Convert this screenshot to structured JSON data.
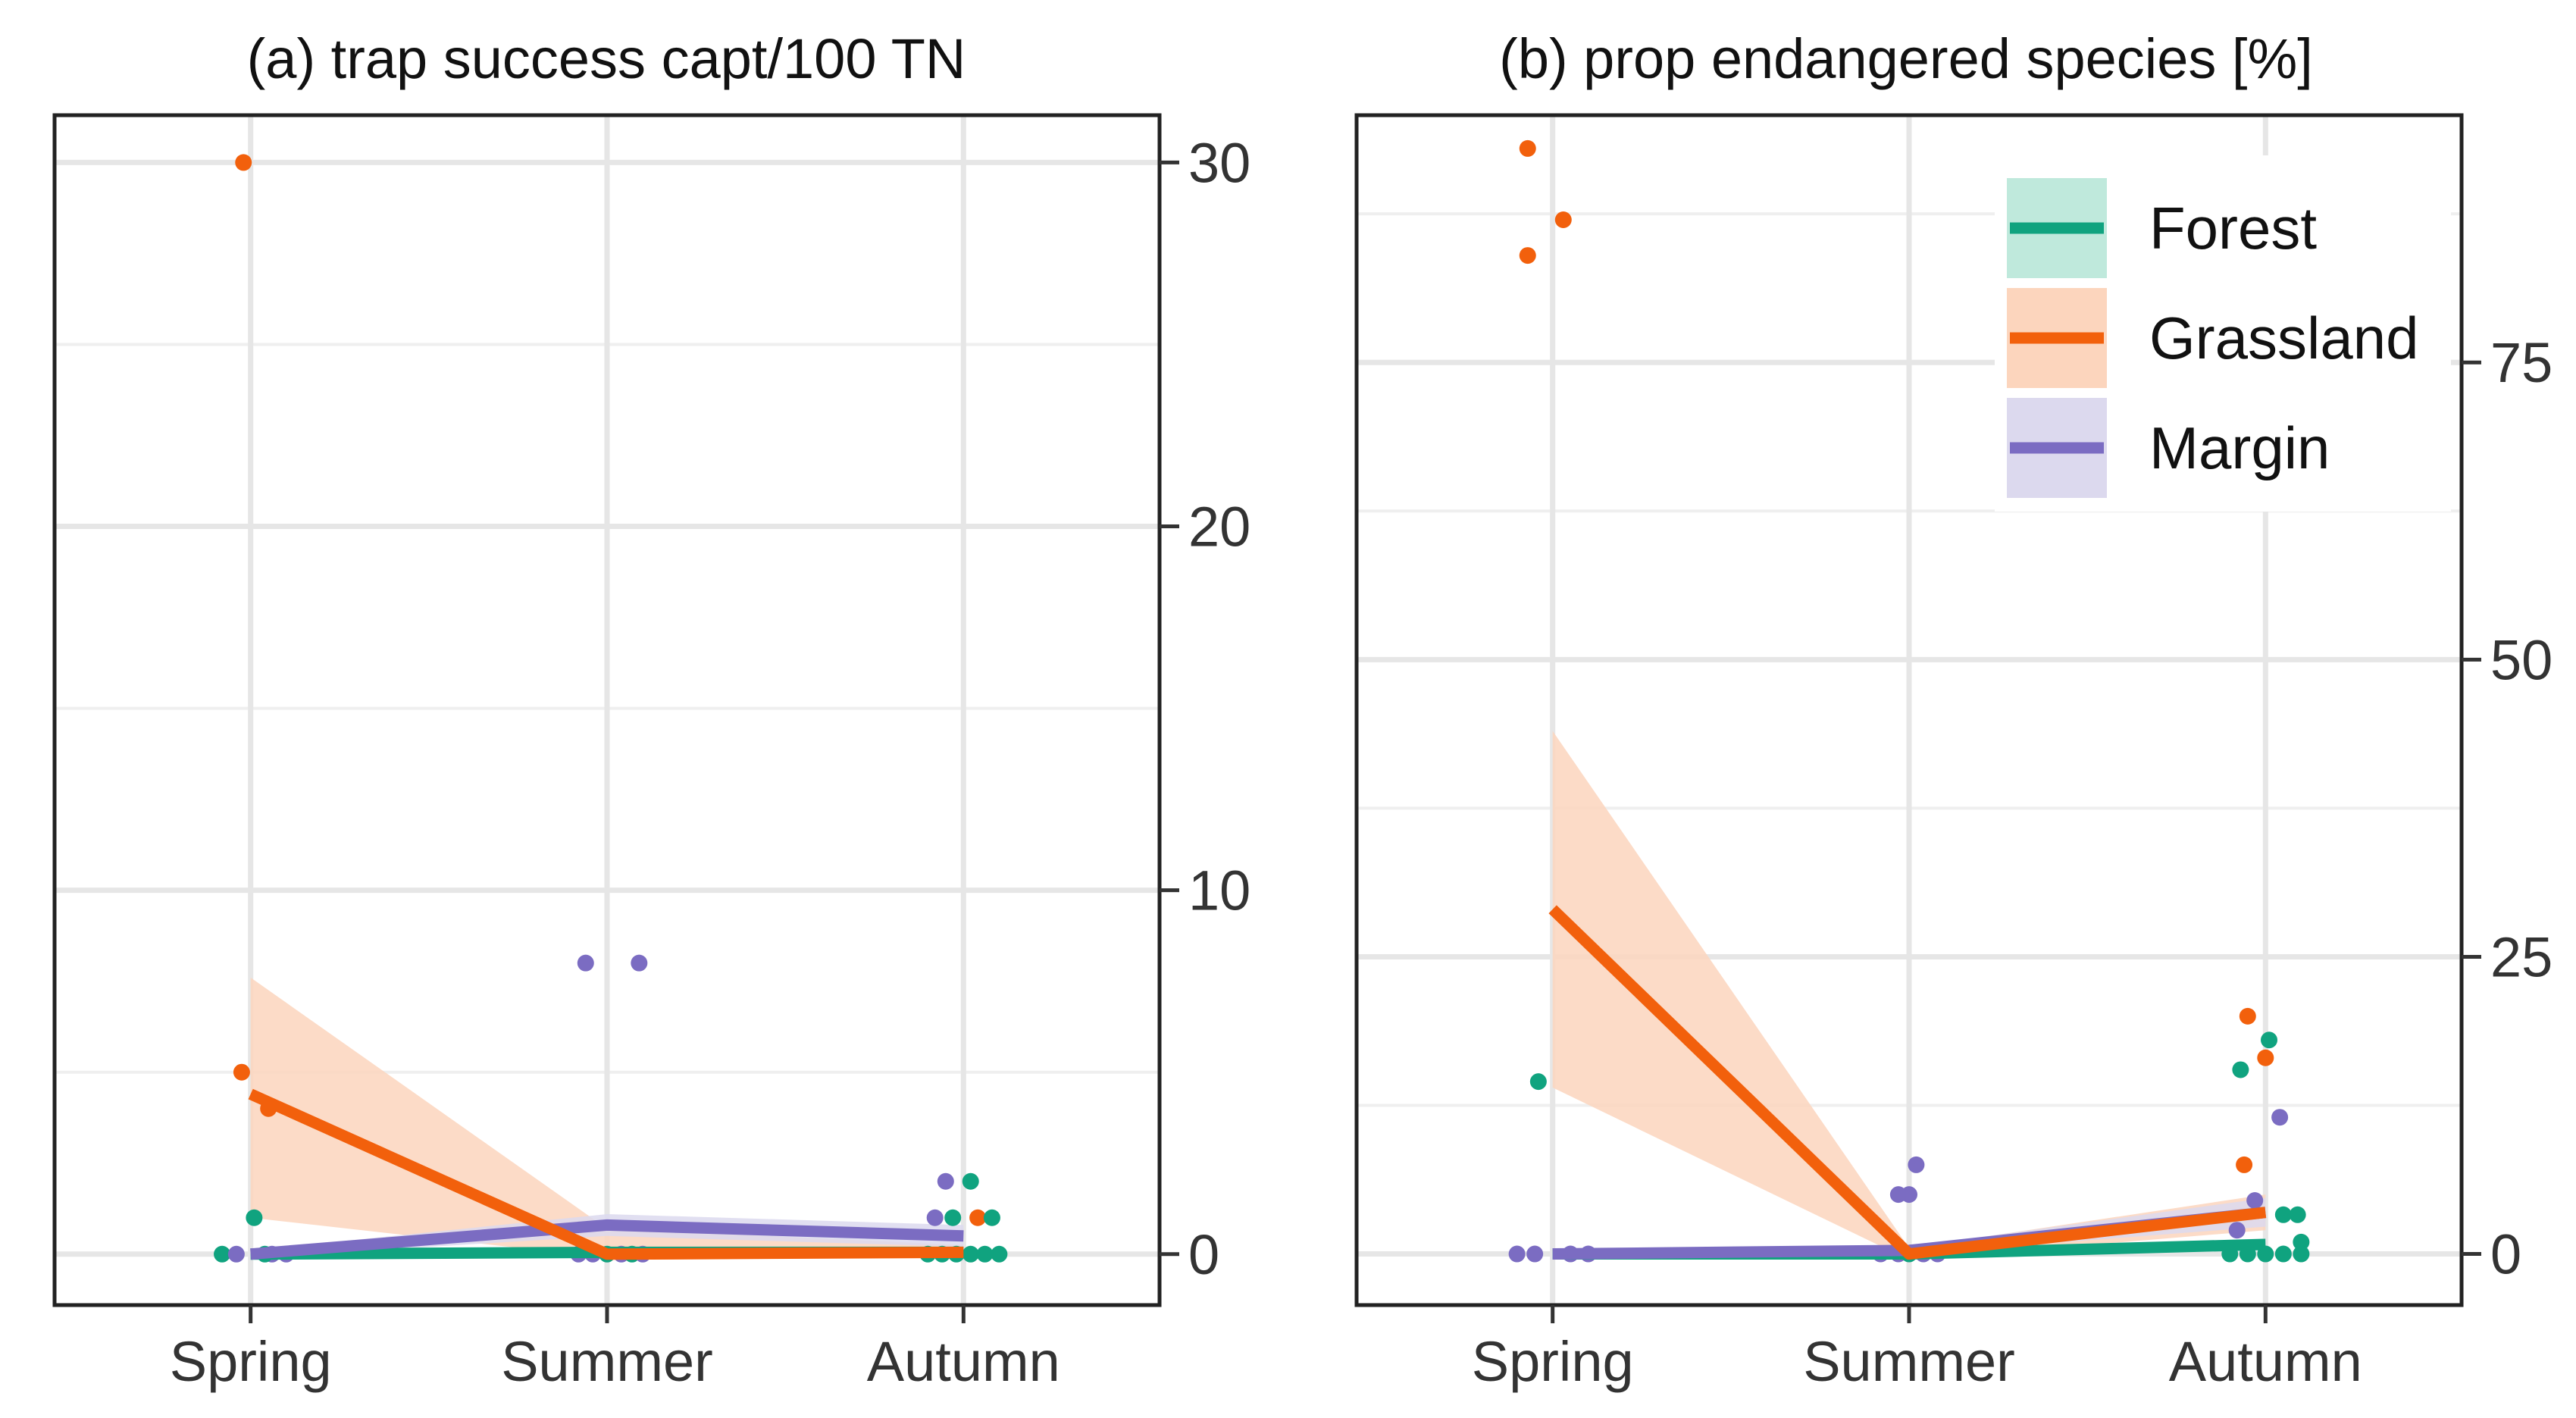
{
  "colors": {
    "Forest": "#10a37f",
    "Grassland": "#f2600c",
    "Margin": "#7b6cc2",
    "Forest_ribbon": "#bfe9dc",
    "Grassland_ribbon": "#fcd5bd",
    "Margin_ribbon": "#dcd9ee"
  },
  "chart_data": [
    {
      "type": "line",
      "panel": "a",
      "title": "(a) trap success capt/100 TN",
      "xlabel": "",
      "ylabel": "",
      "x_ticks": [
        "Spring",
        "Summer",
        "Autumn"
      ],
      "y_axis_side": "right",
      "ylim": [
        -1.4,
        31.3
      ],
      "y_ticks": [
        0,
        10,
        20,
        30
      ],
      "y_tick_labels": [
        "0",
        "10",
        "20",
        "30"
      ],
      "grid": true,
      "series": [
        {
          "name": "Forest",
          "x": [
            0,
            1,
            2
          ],
          "values": [
            0.0,
            0.05,
            0.05
          ],
          "lower": [
            -0.05,
            0.0,
            0.0
          ],
          "upper": [
            0.1,
            0.15,
            0.15
          ]
        },
        {
          "name": "Grassland",
          "x": [
            0,
            1,
            2
          ],
          "values": [
            4.4,
            0.0,
            0.05
          ],
          "lower": [
            1.0,
            -0.1,
            -0.05
          ],
          "upper": [
            7.6,
            0.7,
            0.25
          ]
        },
        {
          "name": "Margin",
          "x": [
            0,
            1,
            2
          ],
          "values": [
            0.0,
            0.8,
            0.5
          ],
          "lower": [
            -0.1,
            0.5,
            0.2
          ],
          "upper": [
            0.1,
            1.1,
            0.8
          ]
        }
      ],
      "points": [
        {
          "series": "Grassland",
          "x": -0.02,
          "y": 30.0
        },
        {
          "series": "Grassland",
          "x": -0.025,
          "y": 5.0
        },
        {
          "series": "Grassland",
          "x": 0.05,
          "y": 4.0
        },
        {
          "series": "Forest",
          "x": 0.01,
          "y": 1.0
        },
        {
          "series": "Margin",
          "x": 0.06,
          "y": 0.0
        },
        {
          "series": "Forest",
          "x": -0.08,
          "y": 0.0
        },
        {
          "series": "Margin",
          "x": -0.04,
          "y": 0.0
        },
        {
          "series": "Forest",
          "x": 0.04,
          "y": 0.0
        },
        {
          "series": "Margin",
          "x": 0.1,
          "y": 0.0
        },
        {
          "series": "Margin",
          "x": 0.94,
          "y": 8.0
        },
        {
          "series": "Margin",
          "x": 1.09,
          "y": 8.0
        },
        {
          "series": "Margin",
          "x": 0.92,
          "y": 0.0
        },
        {
          "series": "Margin",
          "x": 0.96,
          "y": 0.0
        },
        {
          "series": "Forest",
          "x": 1.0,
          "y": 0.0
        },
        {
          "series": "Margin",
          "x": 1.04,
          "y": 0.0
        },
        {
          "series": "Forest",
          "x": 1.07,
          "y": 0.0
        },
        {
          "series": "Margin",
          "x": 1.1,
          "y": 0.0
        },
        {
          "series": "Margin",
          "x": 1.95,
          "y": 2.0
        },
        {
          "series": "Forest",
          "x": 2.02,
          "y": 2.0
        },
        {
          "series": "Margin",
          "x": 1.92,
          "y": 1.0
        },
        {
          "series": "Forest",
          "x": 1.97,
          "y": 1.0
        },
        {
          "series": "Grassland",
          "x": 2.04,
          "y": 1.0
        },
        {
          "series": "Forest",
          "x": 2.08,
          "y": 1.0
        },
        {
          "series": "Forest",
          "x": 1.9,
          "y": 0.0
        },
        {
          "series": "Forest",
          "x": 1.94,
          "y": 0.0
        },
        {
          "series": "Forest",
          "x": 1.98,
          "y": 0.0
        },
        {
          "series": "Forest",
          "x": 2.02,
          "y": 0.0
        },
        {
          "series": "Forest",
          "x": 2.06,
          "y": 0.0
        },
        {
          "series": "Forest",
          "x": 2.1,
          "y": 0.0
        }
      ]
    },
    {
      "type": "line",
      "panel": "b",
      "title": "(b) prop endangered species [%]",
      "xlabel": "",
      "ylabel": "",
      "x_ticks": [
        "Spring",
        "Summer",
        "Autumn"
      ],
      "y_axis_side": "right",
      "ylim": [
        -4.3,
        95.8
      ],
      "y_ticks": [
        0,
        25,
        50,
        75
      ],
      "y_tick_labels": [
        "0",
        "25",
        "50",
        "75"
      ],
      "grid": true,
      "legend": {
        "position": "top-right",
        "entries": [
          "Forest",
          "Grassland",
          "Margin"
        ]
      },
      "series": [
        {
          "name": "Forest",
          "x": [
            0,
            1,
            2
          ],
          "values": [
            0.0,
            0.0,
            0.8
          ],
          "lower": [
            -0.3,
            -0.3,
            0.3
          ],
          "upper": [
            0.3,
            0.3,
            1.3
          ]
        },
        {
          "name": "Grassland",
          "x": [
            0,
            1,
            2
          ],
          "values": [
            29.0,
            0.0,
            3.5
          ],
          "lower": [
            14.0,
            -0.5,
            2.0
          ],
          "upper": [
            44.0,
            0.5,
            5.0
          ]
        },
        {
          "name": "Margin",
          "x": [
            0,
            1,
            2
          ],
          "values": [
            0.0,
            0.3,
            3.5
          ],
          "lower": [
            -0.3,
            0.0,
            2.3
          ],
          "upper": [
            0.3,
            0.6,
            4.7
          ]
        }
      ],
      "points": [
        {
          "series": "Grassland",
          "x": -0.07,
          "y": 93.0
        },
        {
          "series": "Grassland",
          "x": -0.07,
          "y": 84.0
        },
        {
          "series": "Grassland",
          "x": 0.03,
          "y": 87.0
        },
        {
          "series": "Forest",
          "x": -0.04,
          "y": 14.5
        },
        {
          "series": "Margin",
          "x": -0.1,
          "y": 0.0
        },
        {
          "series": "Margin",
          "x": -0.05,
          "y": 0.0
        },
        {
          "series": "Margin",
          "x": 0.05,
          "y": 0.0
        },
        {
          "series": "Margin",
          "x": 0.1,
          "y": 0.0
        },
        {
          "series": "Margin",
          "x": 0.97,
          "y": 5.0
        },
        {
          "series": "Margin",
          "x": 1.0,
          "y": 5.0
        },
        {
          "series": "Margin",
          "x": 1.02,
          "y": 7.5
        },
        {
          "series": "Margin",
          "x": 0.92,
          "y": 0.0
        },
        {
          "series": "Margin",
          "x": 0.97,
          "y": 0.0
        },
        {
          "series": "Forest",
          "x": 1.0,
          "y": 0.0
        },
        {
          "series": "Margin",
          "x": 1.04,
          "y": 0.0
        },
        {
          "series": "Margin",
          "x": 1.08,
          "y": 0.0
        },
        {
          "series": "Grassland",
          "x": 1.95,
          "y": 20.0
        },
        {
          "series": "Grassland",
          "x": 2.0,
          "y": 16.5
        },
        {
          "series": "Forest",
          "x": 2.01,
          "y": 18.0
        },
        {
          "series": "Forest",
          "x": 1.93,
          "y": 15.5
        },
        {
          "series": "Margin",
          "x": 2.04,
          "y": 11.5
        },
        {
          "series": "Grassland",
          "x": 1.94,
          "y": 7.5
        },
        {
          "series": "Margin",
          "x": 1.97,
          "y": 4.5
        },
        {
          "series": "Forest",
          "x": 2.05,
          "y": 3.3
        },
        {
          "series": "Forest",
          "x": 2.09,
          "y": 3.3
        },
        {
          "series": "Margin",
          "x": 1.92,
          "y": 2.0
        },
        {
          "series": "Forest",
          "x": 2.1,
          "y": 1.0
        },
        {
          "series": "Forest",
          "x": 1.9,
          "y": 0.0
        },
        {
          "series": "Forest",
          "x": 1.95,
          "y": 0.0
        },
        {
          "series": "Forest",
          "x": 2.0,
          "y": 0.0
        },
        {
          "series": "Forest",
          "x": 2.05,
          "y": 0.0
        },
        {
          "series": "Forest",
          "x": 2.1,
          "y": 0.0
        }
      ]
    }
  ]
}
